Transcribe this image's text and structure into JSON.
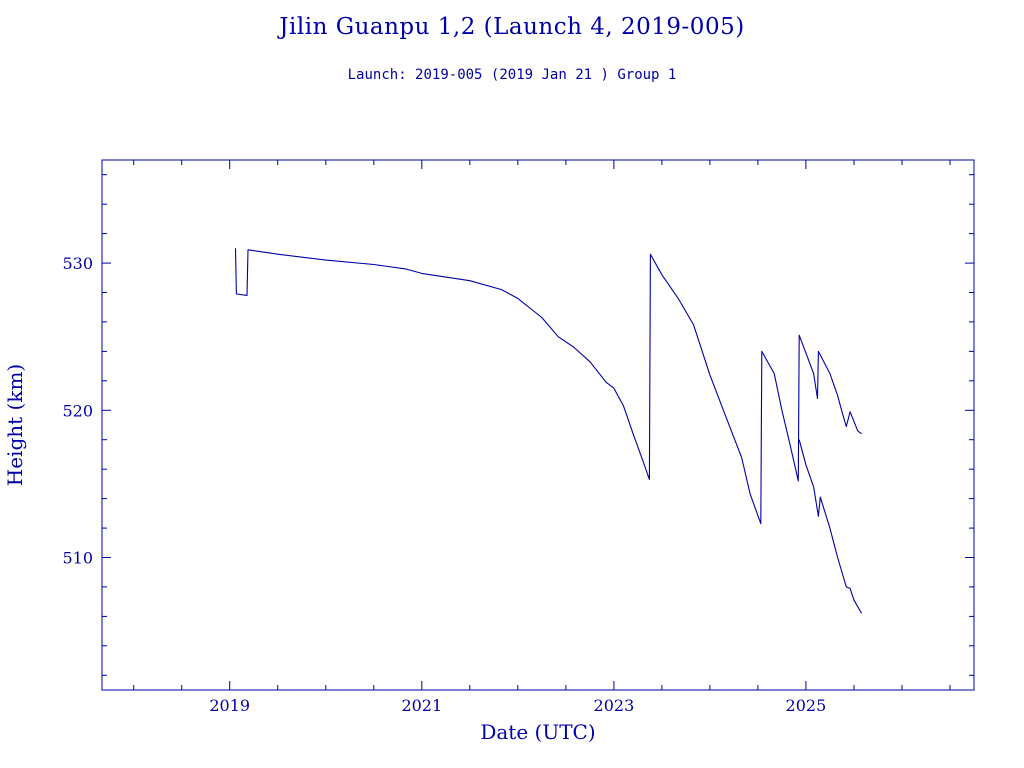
{
  "title": "Jilin Guanpu 1,2 (Launch 4, 2019-005)",
  "subtitle": "Launch: 2019-005  (2019 Jan 21 )  Group 1",
  "colors": {
    "ink": "#0000a8",
    "background": "#ffffff"
  },
  "chart_data": {
    "type": "line",
    "xlabel": "Date (UTC)",
    "ylabel": "Height (km)",
    "xlim": [
      2017.67,
      2026.75
    ],
    "ylim": [
      501,
      537
    ],
    "x_ticks": [
      2019,
      2021,
      2023,
      2025
    ],
    "y_ticks": [
      510,
      520,
      530
    ],
    "x_minor_step": 0.5,
    "y_minor_step": 2,
    "grid": false,
    "legend": "none",
    "series": [
      {
        "points": [
          [
            2019.06,
            531.0
          ],
          [
            2019.07,
            527.9
          ],
          [
            2019.18,
            527.8
          ],
          [
            2019.19,
            530.9
          ],
          [
            2019.5,
            530.6
          ],
          [
            2020.0,
            530.2
          ],
          [
            2020.5,
            529.9
          ],
          [
            2020.83,
            529.6
          ],
          [
            2021.0,
            529.3
          ],
          [
            2021.5,
            528.8
          ],
          [
            2021.83,
            528.2
          ],
          [
            2022.0,
            527.6
          ],
          [
            2022.25,
            526.3
          ],
          [
            2022.42,
            525.0
          ],
          [
            2022.58,
            524.3
          ],
          [
            2022.75,
            523.3
          ],
          [
            2022.92,
            521.9
          ],
          [
            2023.0,
            521.5
          ],
          [
            2023.1,
            520.3
          ],
          [
            2023.2,
            518.4
          ],
          [
            2023.3,
            516.6
          ],
          [
            2023.37,
            515.3
          ],
          [
            2023.38,
            530.6
          ],
          [
            2023.5,
            529.2
          ],
          [
            2023.67,
            527.6
          ],
          [
            2023.83,
            525.8
          ],
          [
            2024.0,
            522.4
          ],
          [
            2024.17,
            519.5
          ],
          [
            2024.33,
            516.8
          ],
          [
            2024.42,
            514.3
          ],
          [
            2024.53,
            512.3
          ],
          [
            2024.54,
            524.0
          ],
          [
            2024.67,
            522.5
          ],
          [
            2024.75,
            520.0
          ],
          [
            2024.83,
            517.8
          ],
          [
            2024.92,
            515.2
          ],
          [
            2024.93,
            525.1
          ],
          [
            2025.0,
            523.9
          ],
          [
            2025.08,
            522.5
          ],
          [
            2025.12,
            520.8
          ],
          [
            2025.13,
            524.0
          ],
          [
            2025.25,
            522.5
          ],
          [
            2025.33,
            521.0
          ],
          [
            2025.38,
            519.8
          ],
          [
            2025.42,
            518.9
          ],
          [
            2025.46,
            519.9
          ],
          [
            2025.54,
            518.6
          ],
          [
            2025.58,
            518.4
          ]
        ]
      },
      {
        "points": [
          [
            2024.93,
            518.0
          ],
          [
            2025.0,
            516.3
          ],
          [
            2025.08,
            514.8
          ],
          [
            2025.13,
            512.8
          ],
          [
            2025.15,
            514.1
          ],
          [
            2025.25,
            512.0
          ],
          [
            2025.33,
            510.0
          ],
          [
            2025.42,
            508.0
          ],
          [
            2025.46,
            507.9
          ],
          [
            2025.5,
            507.1
          ],
          [
            2025.58,
            506.2
          ]
        ]
      }
    ]
  }
}
